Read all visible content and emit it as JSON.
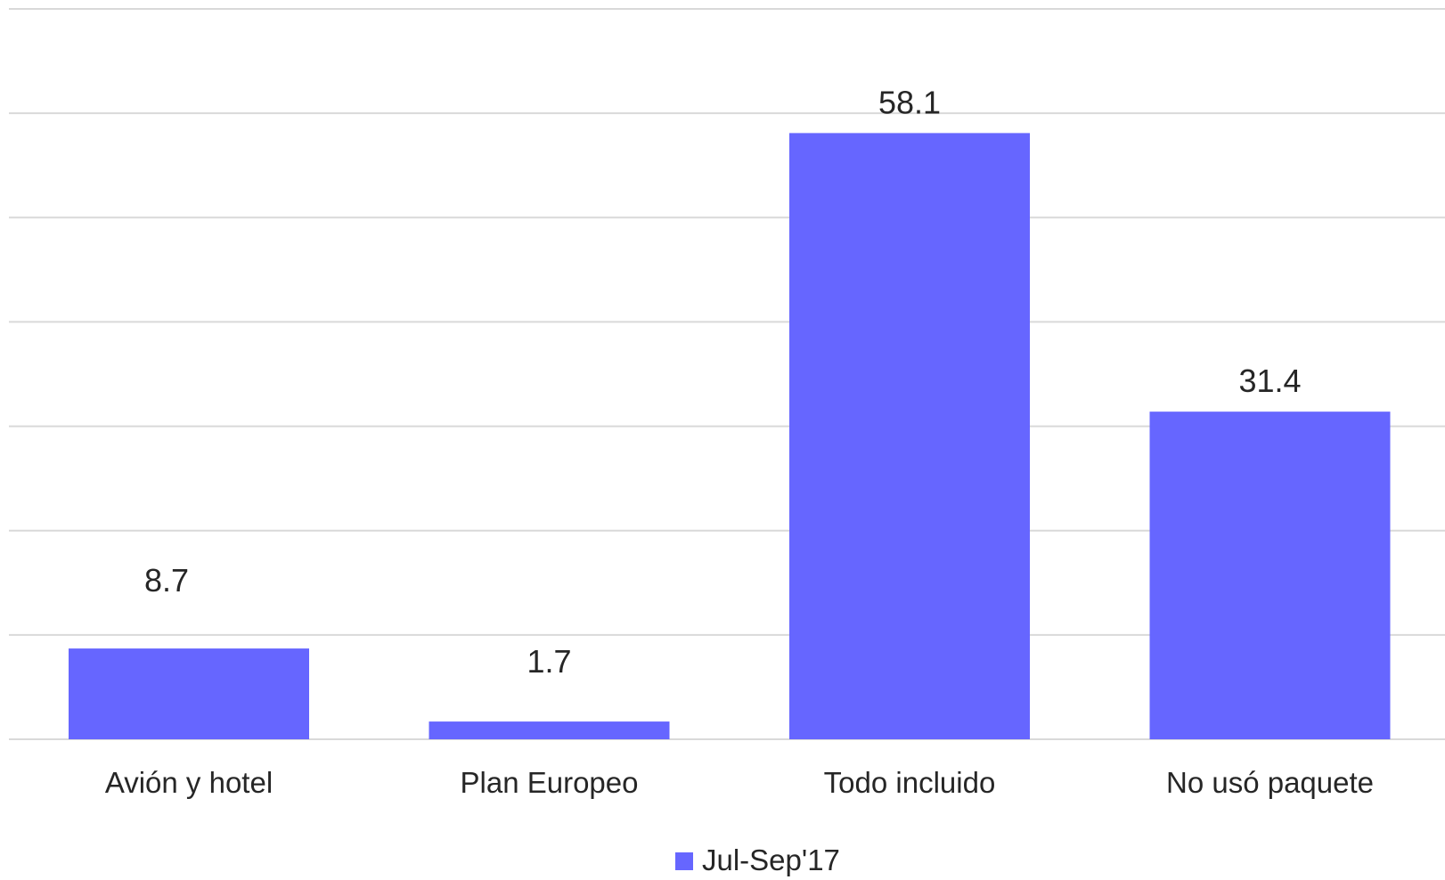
{
  "chart_data": {
    "type": "bar",
    "categories": [
      "Avión y hotel",
      "Plan Europeo",
      "Todo incluido",
      "No usó paquete"
    ],
    "series": [
      {
        "name": "Jul-Sep'17",
        "values": [
          8.7,
          1.7,
          58.1,
          31.4
        ],
        "labels": [
          "8.7",
          "1.7",
          "58.1",
          "31.4"
        ],
        "color": "#6666ff"
      }
    ],
    "ylim": [
      0,
      70
    ],
    "grid": true,
    "legend": "bottom-center"
  }
}
